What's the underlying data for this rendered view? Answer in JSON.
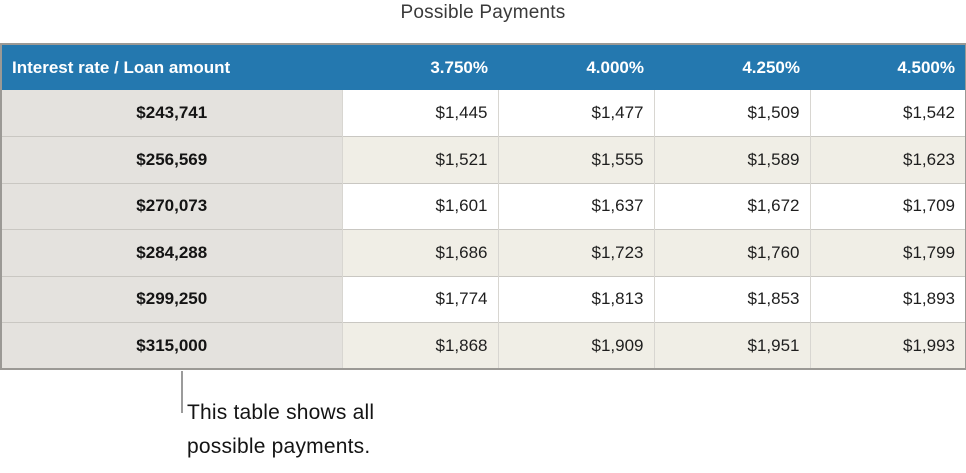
{
  "title": "Possible Payments",
  "chart_data": {
    "type": "table",
    "title": "Possible Payments",
    "columns": [
      "Interest rate / Loan amount",
      "3.750%",
      "4.000%",
      "4.250%",
      "4.500%"
    ],
    "rows": [
      [
        "$243,741",
        "$1,445",
        "$1,477",
        "$1,509",
        "$1,542"
      ],
      [
        "$256,569",
        "$1,521",
        "$1,555",
        "$1,589",
        "$1,623"
      ],
      [
        "$270,073",
        "$1,601",
        "$1,637",
        "$1,672",
        "$1,709"
      ],
      [
        "$284,288",
        "$1,686",
        "$1,723",
        "$1,760",
        "$1,799"
      ],
      [
        "$299,250",
        "$1,774",
        "$1,813",
        "$1,853",
        "$1,893"
      ],
      [
        "$315,000",
        "$1,868",
        "$1,909",
        "$1,951",
        "$1,993"
      ]
    ],
    "annotation": "This table shows all possible payments.",
    "layout": {
      "header_fill": "#2478af",
      "header_text_color": "#ffffff",
      "row_header_fill": "#e4e2de",
      "alt_row_fill": "#f0eee6",
      "row_fill": "#ffffff",
      "outer_border_color": "#9b9995",
      "grid_on": true
    }
  },
  "callout": {
    "lines": [
      "This table shows all",
      "possible payments."
    ],
    "connector_color": "#9b9b9b"
  }
}
